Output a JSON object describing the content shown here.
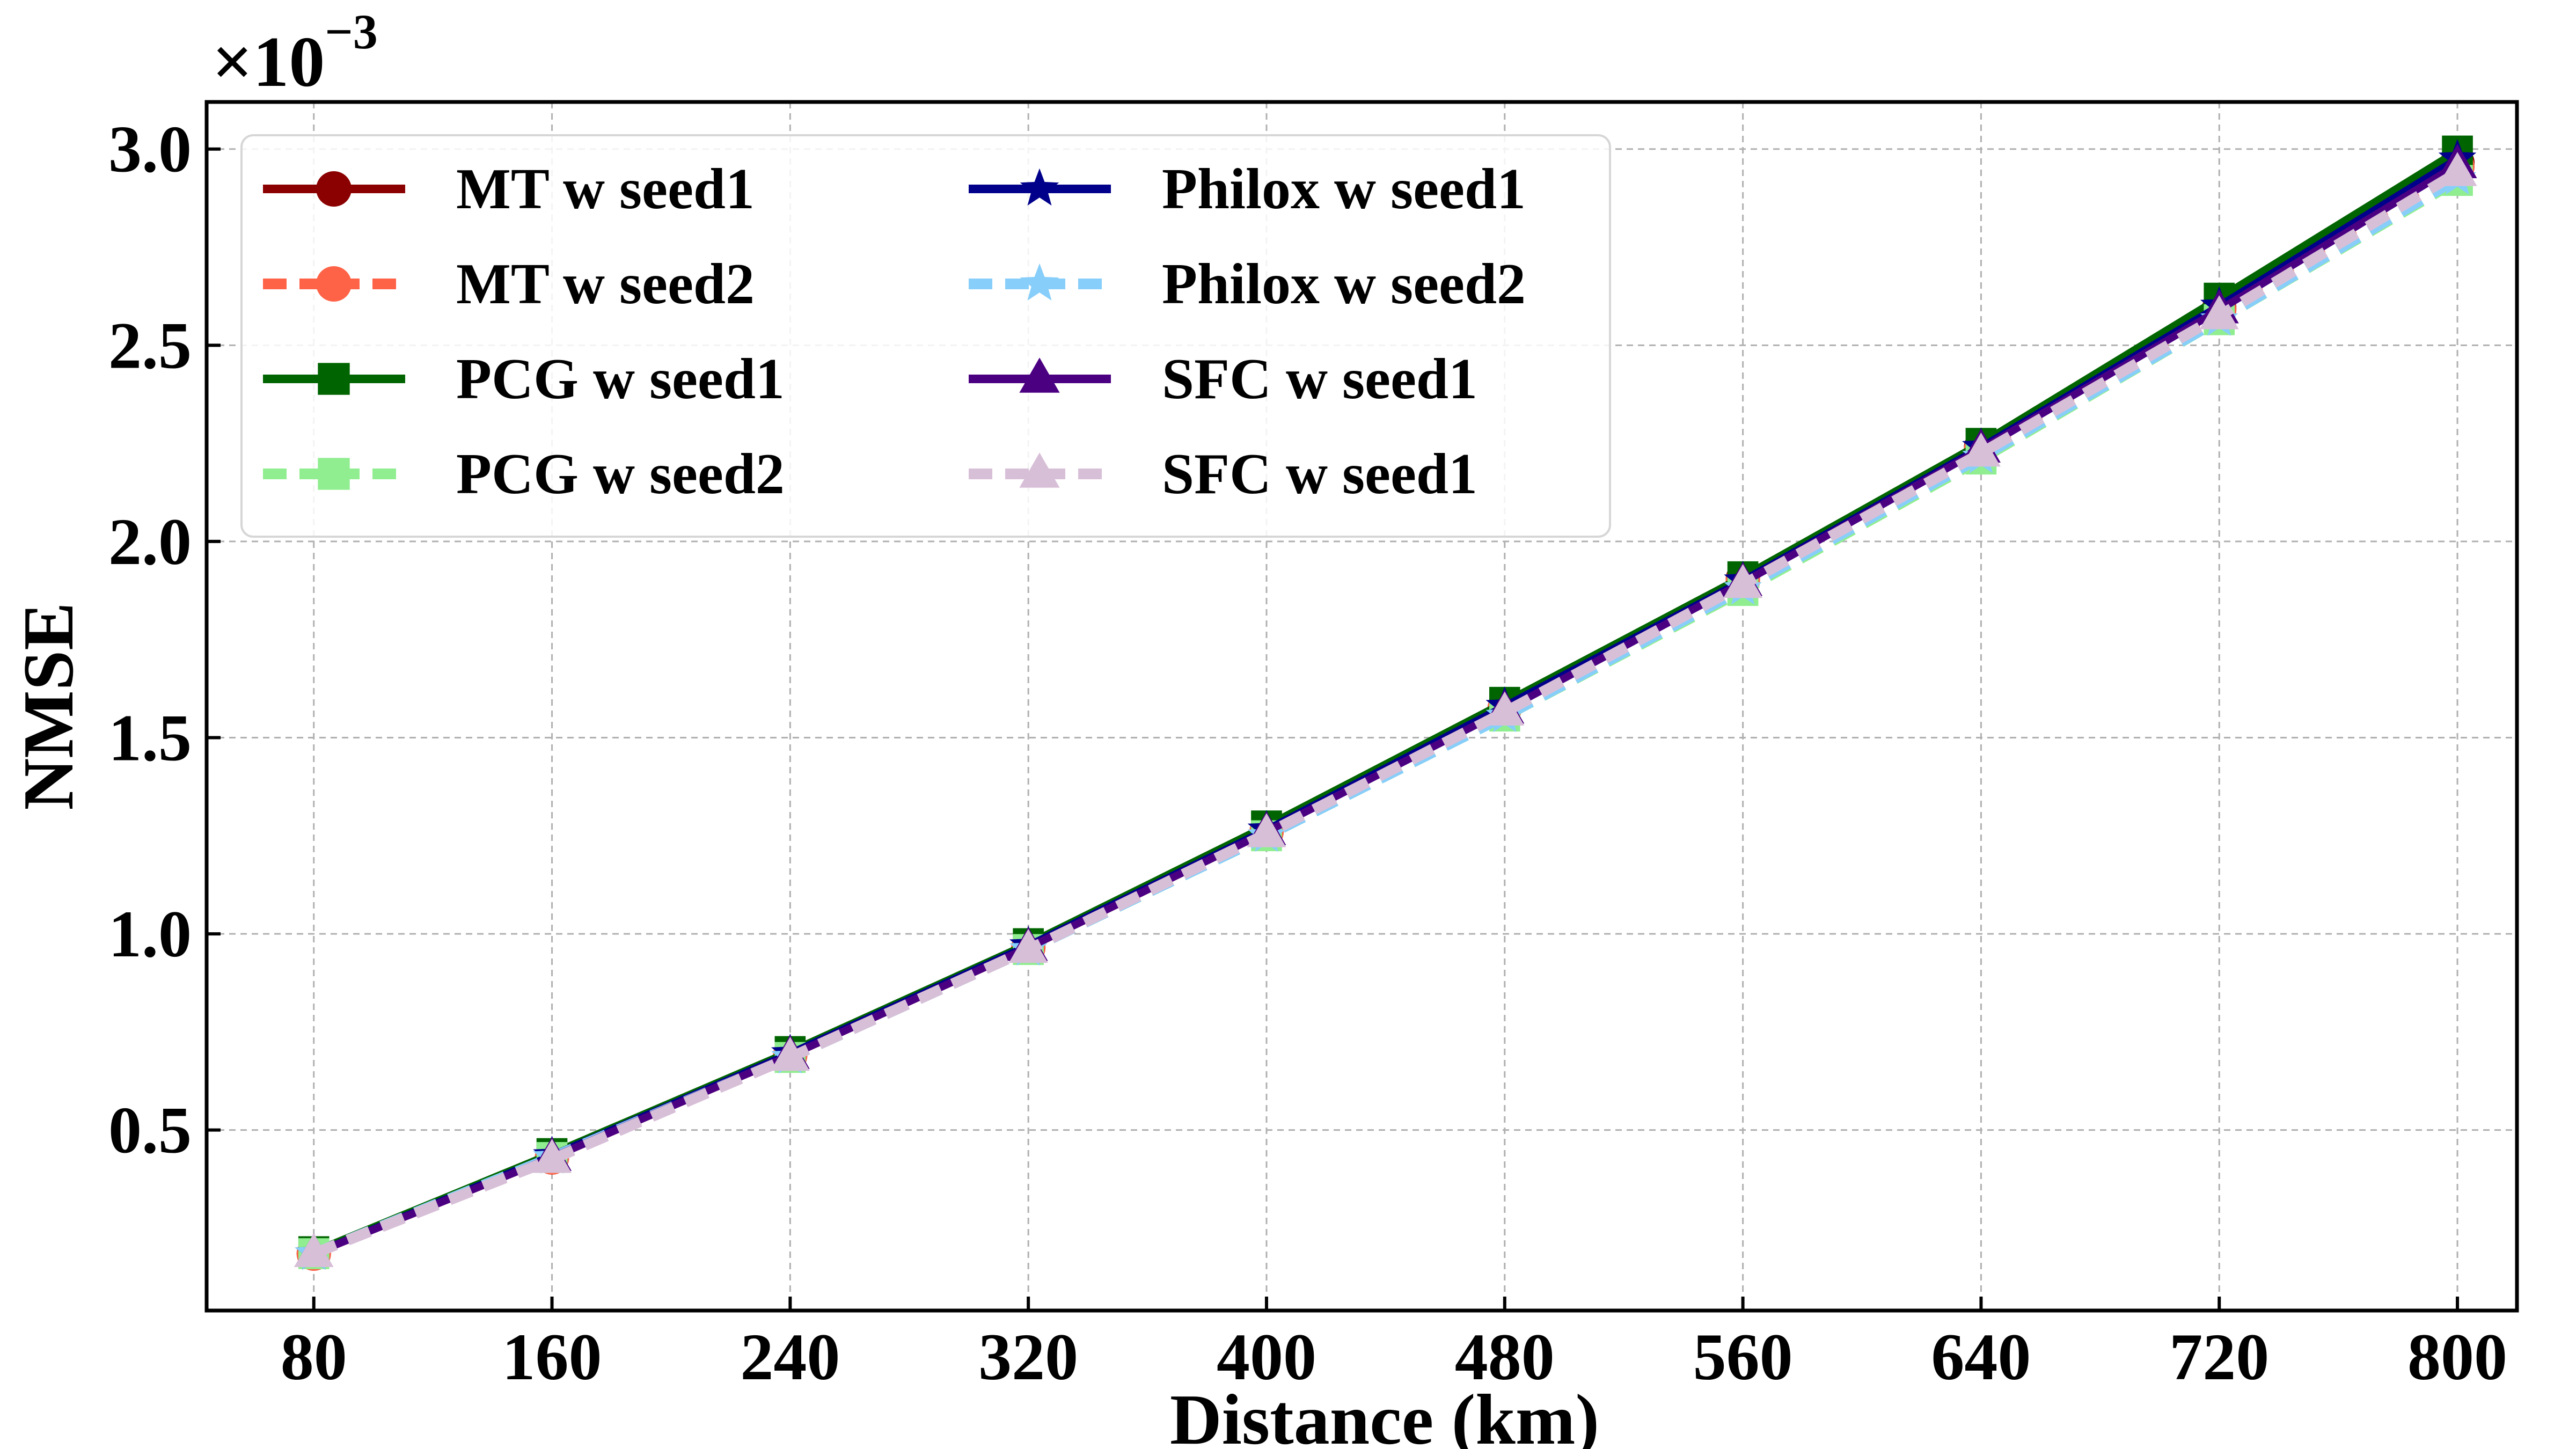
{
  "chart_data": {
    "type": "line",
    "title": "",
    "xlabel": "Distance (km)",
    "ylabel": "NMSE",
    "y_scale_label": "×10",
    "y_scale_exponent": "−3",
    "x": [
      80,
      160,
      240,
      320,
      400,
      480,
      560,
      640,
      720,
      800
    ],
    "x_tick_labels": [
      "80",
      "160",
      "240",
      "320",
      "400",
      "480",
      "560",
      "640",
      "720",
      "800"
    ],
    "y_ticks": [
      0.5,
      1.0,
      1.5,
      2.0,
      2.5,
      3.0
    ],
    "y_tick_labels": [
      "0.5",
      "1.0",
      "1.5",
      "2.0",
      "2.5",
      "3.0"
    ],
    "xlim": [
      44,
      820
    ],
    "ylim": [
      0.04,
      3.12
    ],
    "grid": true,
    "legend_position": "top-left",
    "series": [
      {
        "name": "MT w seed1",
        "color": "#8b0000",
        "dash": "solid",
        "marker": "circle",
        "values": [
          0.185,
          0.43,
          0.69,
          0.965,
          1.26,
          1.575,
          1.905,
          2.24,
          2.595,
          2.965
        ]
      },
      {
        "name": "MT w seed2",
        "color": "#ff6347",
        "dash": "dashed",
        "marker": "circle",
        "values": [
          0.185,
          0.43,
          0.69,
          0.965,
          1.26,
          1.575,
          1.9,
          2.235,
          2.59,
          2.955
        ]
      },
      {
        "name": "PCG w seed1",
        "color": "#006400",
        "dash": "solid",
        "marker": "square",
        "values": [
          0.19,
          0.44,
          0.7,
          0.975,
          1.275,
          1.59,
          1.91,
          2.25,
          2.62,
          2.995
        ]
      },
      {
        "name": "PCG w seed2",
        "color": "#90ee90",
        "dash": "dashed",
        "marker": "square",
        "values": [
          0.185,
          0.43,
          0.685,
          0.96,
          1.25,
          1.555,
          1.875,
          2.21,
          2.565,
          2.92
        ]
      },
      {
        "name": "Philox w seed1",
        "color": "#00008b",
        "dash": "solid",
        "marker": "star",
        "values": [
          0.185,
          0.435,
          0.695,
          0.97,
          1.265,
          1.58,
          1.9,
          2.24,
          2.6,
          2.975
        ]
      },
      {
        "name": "Philox w seed2",
        "color": "#87cefa",
        "dash": "dashed",
        "marker": "star",
        "values": [
          0.185,
          0.43,
          0.685,
          0.96,
          1.25,
          1.555,
          1.88,
          2.215,
          2.565,
          2.925
        ]
      },
      {
        "name": "SFC w seed1",
        "color": "#4b0082",
        "dash": "solid",
        "marker": "triangle",
        "values": [
          0.185,
          0.43,
          0.69,
          0.965,
          1.26,
          1.57,
          1.895,
          2.235,
          2.59,
          2.96
        ]
      },
      {
        "name": "SFC w seed1",
        "color": "#d8bfd8",
        "dash": "dashed",
        "marker": "triangle",
        "values": [
          0.185,
          0.425,
          0.685,
          0.96,
          1.255,
          1.565,
          1.89,
          2.225,
          2.575,
          2.94
        ]
      }
    ]
  }
}
